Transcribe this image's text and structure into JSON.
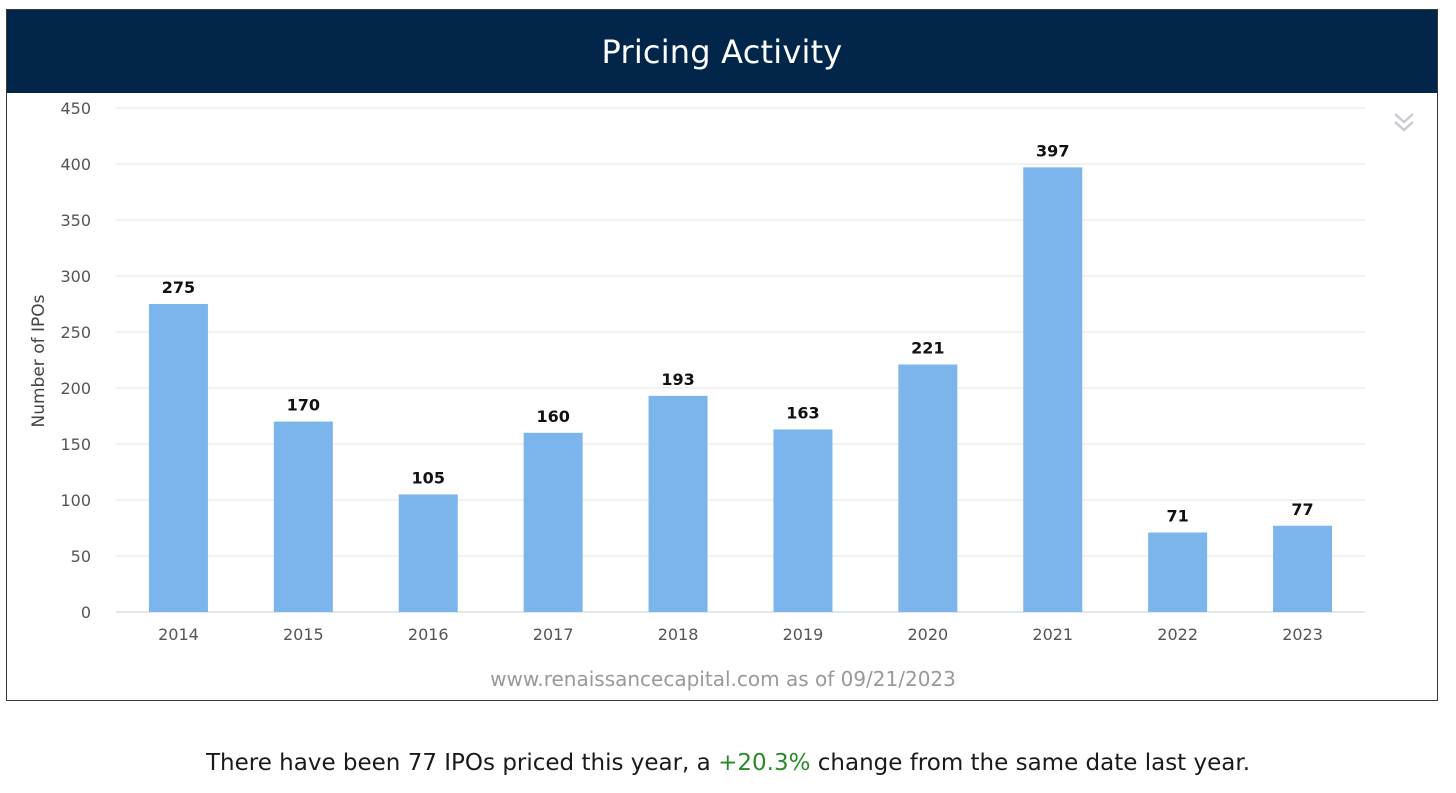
{
  "header": {
    "title": "Pricing Activity"
  },
  "menu": {
    "icon": "chevron-double-down-icon"
  },
  "source": "www.renaissancecapital.com as of 09/21/2023",
  "summary": {
    "prefix": "There have been 77 IPOs priced this year, a ",
    "change": "+20.3%",
    "suffix": " change from the same date last year."
  },
  "colors": {
    "header_bg": "#01264a",
    "bar": "#7cb5ec",
    "positive_change": "#2a8a2a"
  },
  "chart_data": {
    "type": "bar",
    "categories": [
      "2014",
      "2015",
      "2016",
      "2017",
      "2018",
      "2019",
      "2020",
      "2021",
      "2022",
      "2023"
    ],
    "values": [
      275,
      170,
      105,
      160,
      193,
      163,
      221,
      397,
      71,
      77
    ],
    "data_labels": [
      "275",
      "170",
      "105",
      "160",
      "193",
      "163",
      "221",
      "397",
      "71",
      "77"
    ],
    "ylabel": "Number of IPOs",
    "ylim": [
      0,
      450
    ],
    "yticks": [
      0,
      50,
      100,
      150,
      200,
      250,
      300,
      350,
      400,
      450
    ],
    "grid": true,
    "legend": "none"
  }
}
